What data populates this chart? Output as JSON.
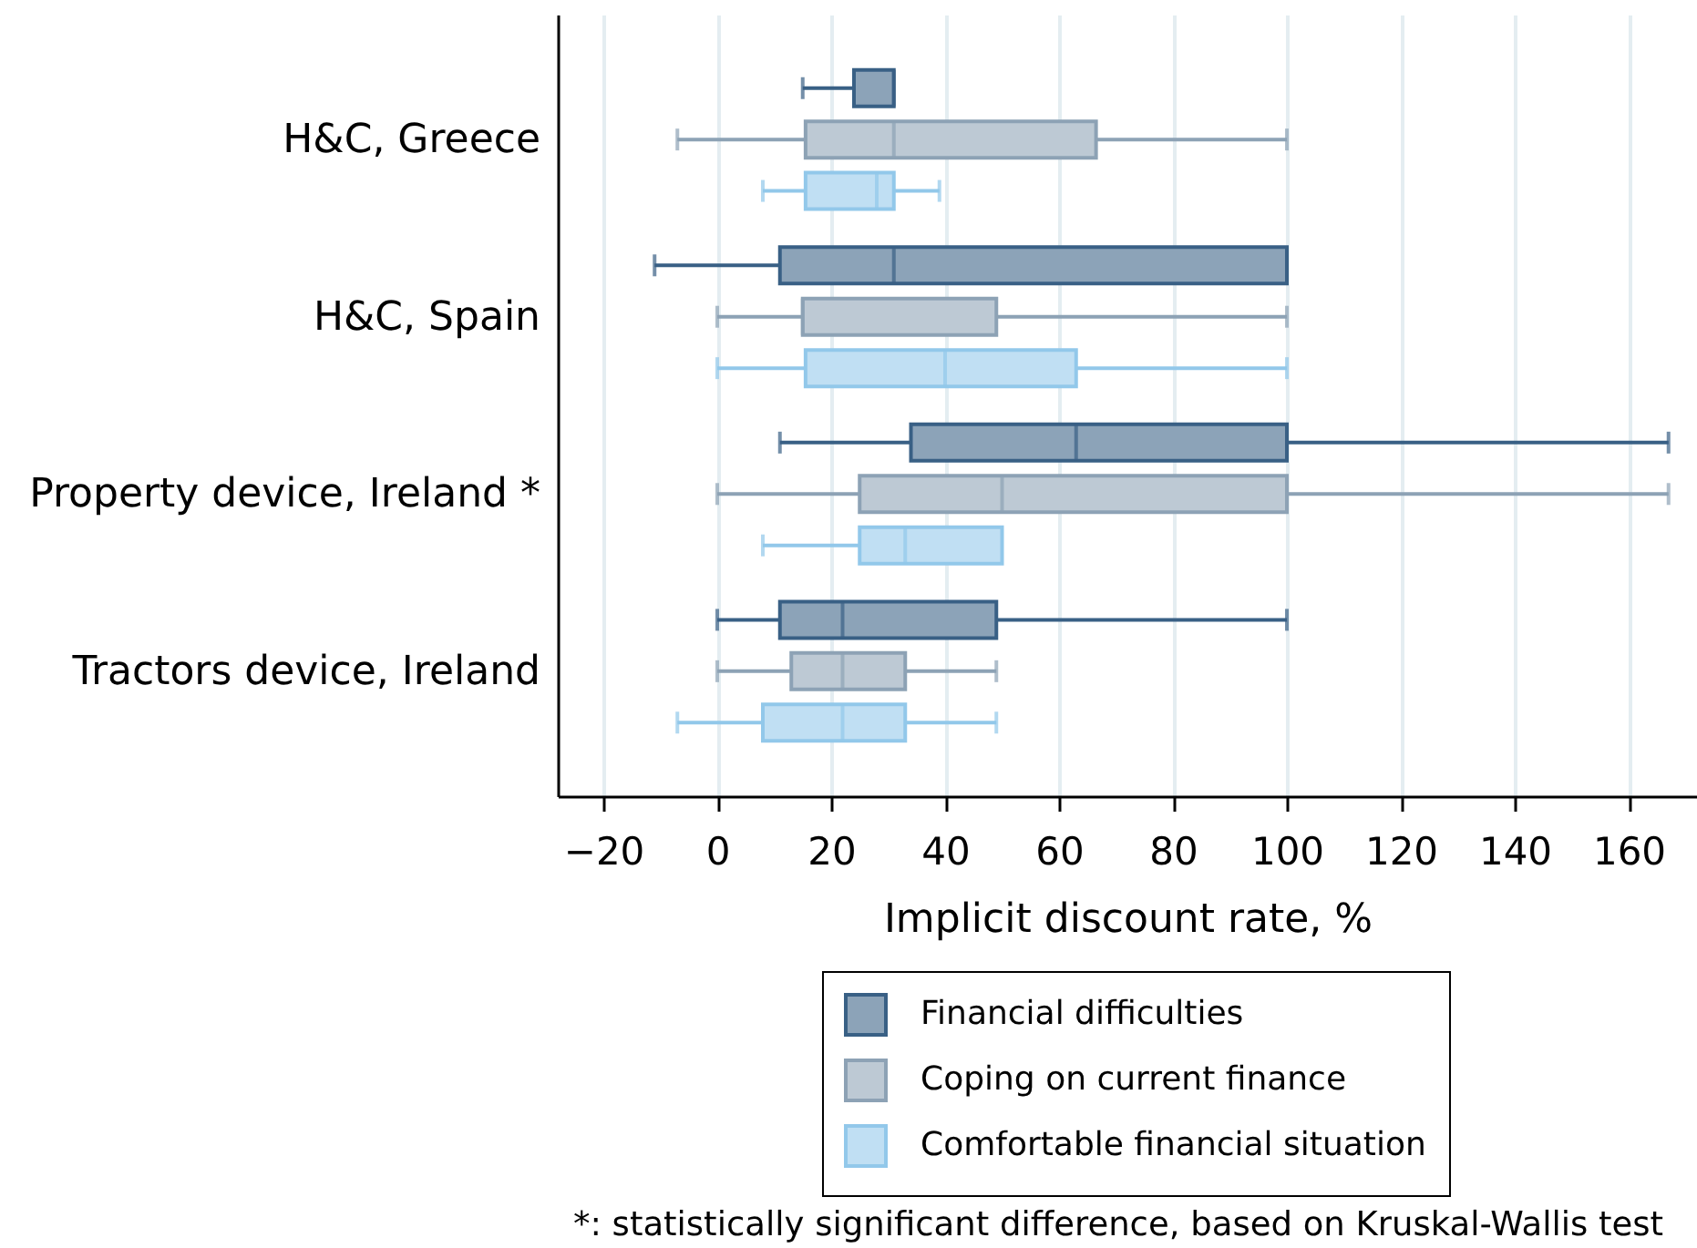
{
  "chart_data": {
    "type": "box",
    "orientation": "horizontal",
    "categories": [
      "H&C, Greece",
      "H&C, Spain",
      "Property device, Ireland *",
      "Tractors device, Ireland"
    ],
    "series": [
      {
        "name": "Financial difficulties",
        "color": "#8ca3b8",
        "boxes": [
          {
            "low": 15,
            "q1": 24,
            "median": 31,
            "q3": 31,
            "high": 31
          },
          {
            "low": -11,
            "q1": 11,
            "median": 31,
            "q3": 100,
            "high": 100
          },
          {
            "low": 11,
            "q1": 34,
            "median": 63,
            "q3": 100,
            "high": 167
          },
          {
            "low": 0,
            "q1": 11,
            "median": 22,
            "q3": 49,
            "high": 100
          }
        ]
      },
      {
        "name": "Coping on current finance",
        "color": "#bdc9d4",
        "boxes": [
          {
            "low": -7,
            "q1": 15.5,
            "median": 31,
            "q3": 66.5,
            "high": 100
          },
          {
            "low": 0,
            "q1": 15,
            "median": 15,
            "q3": 49,
            "high": 100
          },
          {
            "low": 0,
            "q1": 25,
            "median": 50,
            "q3": 100,
            "high": 167
          },
          {
            "low": 0,
            "q1": 13,
            "median": 22,
            "q3": 33,
            "high": 49
          }
        ]
      },
      {
        "name": "Comfortable financial situation",
        "color": "#c0dff3",
        "boxes": [
          {
            "low": 8,
            "q1": 15.5,
            "median": 28,
            "q3": 31,
            "high": 39
          },
          {
            "low": 0,
            "q1": 15.5,
            "median": 40,
            "q3": 63,
            "high": 100
          },
          {
            "low": 8,
            "q1": 25,
            "median": 33,
            "q3": 50,
            "high": 50
          },
          {
            "low": -7,
            "q1": 8,
            "median": 22,
            "q3": 33,
            "high": 49
          }
        ]
      }
    ],
    "xlim": [
      -28,
      172
    ],
    "xticks": [
      -20,
      0,
      20,
      40,
      60,
      80,
      100,
      120,
      140,
      160
    ],
    "xlabel": "Implicit discount rate, %",
    "grid": "x",
    "legend": "bottom",
    "annotations": [
      "*: statistically significant difference, based on Kruskal-Wallis test"
    ]
  }
}
